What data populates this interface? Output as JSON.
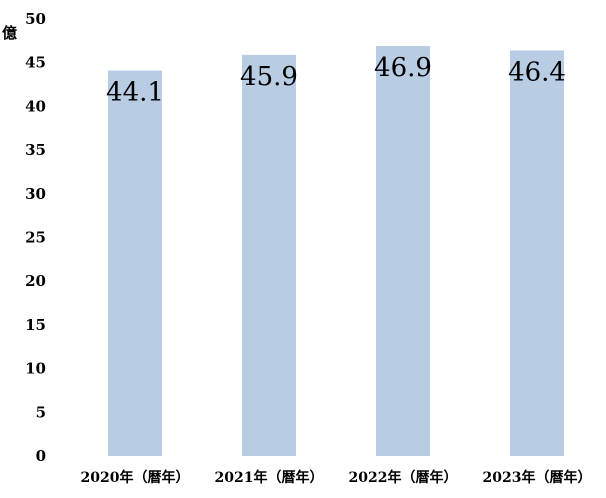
{
  "chart_data": {
    "type": "bar",
    "title": "",
    "xlabel": "",
    "ylabel": "億",
    "categories": [
      "2020年（暦年）",
      "2021年（暦年）",
      "2022年（暦年）",
      "2023年（暦年）"
    ],
    "values": [
      44.1,
      45.9,
      46.9,
      46.4
    ],
    "data_labels": [
      "44.1",
      "45.9",
      "46.9",
      "46.4"
    ],
    "ylim": [
      0,
      50
    ],
    "yticks": [
      0,
      5,
      10,
      15,
      20,
      25,
      30,
      35,
      40,
      45,
      50
    ],
    "grid": false,
    "legend": "none",
    "bar_color": "#b8cce4"
  }
}
